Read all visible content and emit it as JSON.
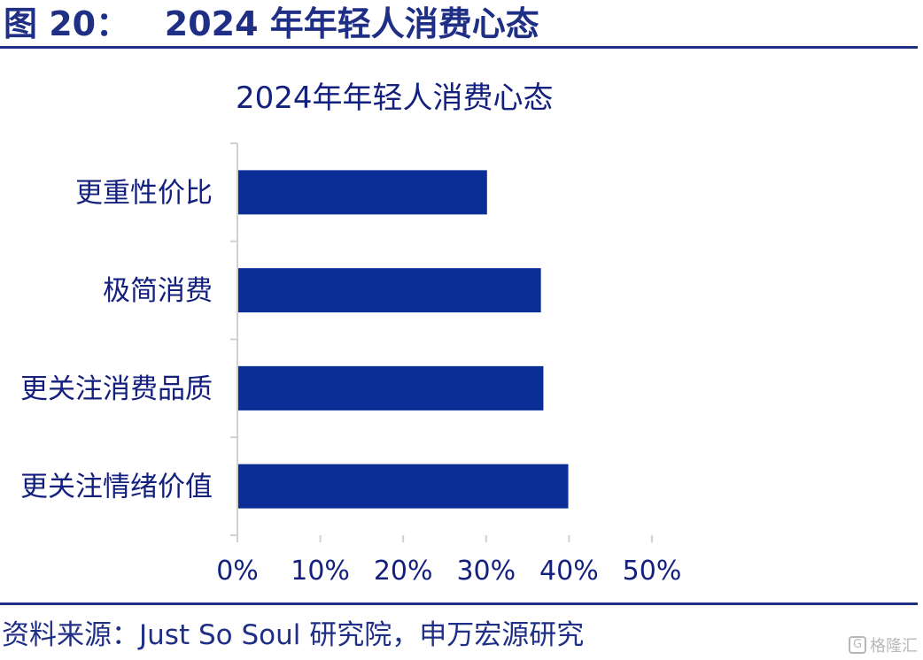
{
  "figure": {
    "title": "图 20：   2024 年年轻人消费心态",
    "source": "资料来源：Just So Soul 研究院，申万宏源研究",
    "watermark_label": "格隆汇",
    "watermark_icon": "g-logo-icon"
  },
  "colors": {
    "bar": "#0a2d96",
    "title": "#1f2f86",
    "axis": "#d0d0d0",
    "text": "#14207d"
  },
  "chart_data": {
    "type": "bar",
    "orientation": "horizontal",
    "title": "2024年年轻人消费心态",
    "categories": [
      "更重性价比",
      "极简消费",
      "更关注消费品质",
      "更关注情绪价值"
    ],
    "values": [
      30,
      36.5,
      36.8,
      39.8
    ],
    "xlim": [
      0,
      50
    ],
    "x_ticks": [
      "0%",
      "10%",
      "20%",
      "30%",
      "40%",
      "50%"
    ],
    "xlabel": "",
    "ylabel": "",
    "grid": false,
    "legend": false
  }
}
